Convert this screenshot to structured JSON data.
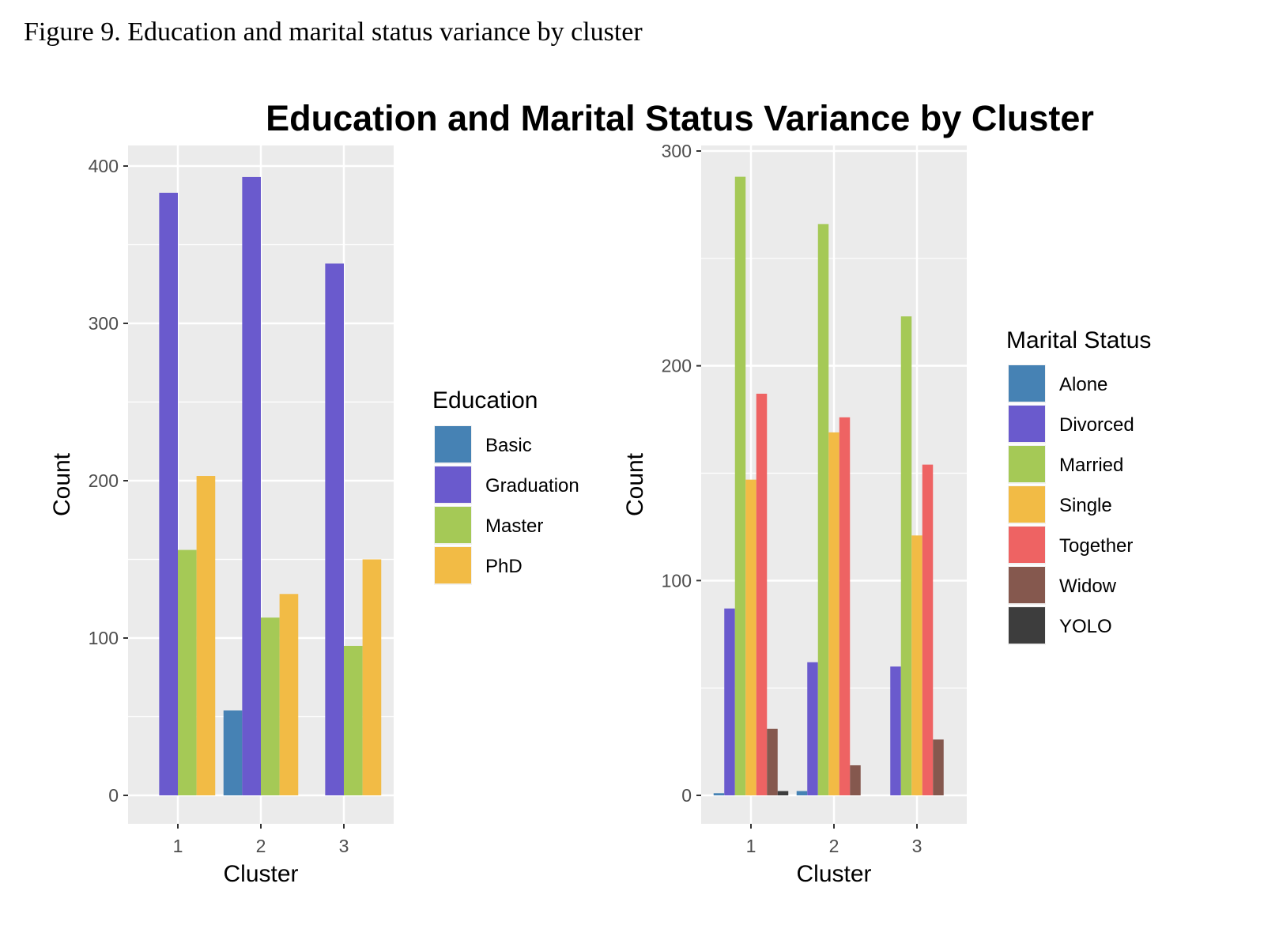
{
  "caption": "Figure 9. Education and marital status variance by cluster",
  "title": "Education and Marital Status Variance by Cluster",
  "chart_data": [
    {
      "type": "bar",
      "xlabel": "Cluster",
      "ylabel": "Count",
      "categories": [
        "1",
        "2",
        "3"
      ],
      "ylim": [
        0,
        400
      ],
      "yticks": [
        0,
        100,
        200,
        300,
        400
      ],
      "grid": true,
      "legend_title": "Education",
      "legend_position": "right",
      "series": [
        {
          "name": "Basic",
          "color": "#4682B4",
          "values": [
            0,
            54,
            0
          ]
        },
        {
          "name": "Graduation",
          "color": "#6A5ACD",
          "values": [
            383,
            393,
            338
          ]
        },
        {
          "name": "Master",
          "color": "#A5C956",
          "values": [
            156,
            113,
            95
          ]
        },
        {
          "name": "PhD",
          "color": "#F2BB45",
          "values": [
            203,
            128,
            150
          ]
        }
      ]
    },
    {
      "type": "bar",
      "xlabel": "Cluster",
      "ylabel": "Count",
      "categories": [
        "1",
        "2",
        "3"
      ],
      "ylim": [
        0,
        300
      ],
      "yticks": [
        0,
        100,
        200,
        300
      ],
      "grid": true,
      "legend_title": "Marital Status",
      "legend_position": "right",
      "series": [
        {
          "name": "Alone",
          "color": "#4682B4",
          "values": [
            1,
            2,
            0
          ]
        },
        {
          "name": "Divorced",
          "color": "#6A5ACD",
          "values": [
            87,
            62,
            60
          ]
        },
        {
          "name": "Married",
          "color": "#A5C956",
          "values": [
            288,
            266,
            223
          ]
        },
        {
          "name": "Single",
          "color": "#F2BB45",
          "values": [
            147,
            169,
            121
          ]
        },
        {
          "name": "Together",
          "color": "#EE6363",
          "values": [
            187,
            176,
            154
          ]
        },
        {
          "name": "Widow",
          "color": "#85584E",
          "values": [
            31,
            14,
            26
          ]
        },
        {
          "name": "YOLO",
          "color": "#3D3D3D",
          "values": [
            2,
            0,
            0
          ]
        }
      ]
    }
  ]
}
